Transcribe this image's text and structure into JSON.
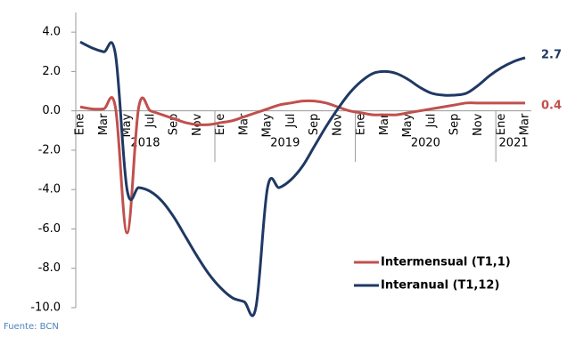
{
  "chart_data": {
    "type": "line",
    "categories": [
      "Ene",
      null,
      "Mar",
      null,
      "May",
      null,
      "Jul",
      null,
      "Sep",
      null,
      "Nov",
      null,
      "Ene",
      null,
      "Mar",
      null,
      "May",
      null,
      "Jul",
      null,
      "Sep",
      null,
      "Nov",
      null,
      "Ene",
      null,
      "Mar",
      null,
      "May",
      null,
      "Jul",
      null,
      "Sep",
      null,
      "Nov",
      null,
      "Ene",
      null,
      "Mar"
    ],
    "years": [
      "2018",
      "2019",
      "2020",
      "2021"
    ],
    "ylim": [
      -10,
      5
    ],
    "yticks": [
      {
        "value": 4,
        "label": "4.0"
      },
      {
        "value": 2,
        "label": "2.0"
      },
      {
        "value": 0,
        "label": "0.0"
      },
      {
        "value": -2,
        "label": "-2.0"
      },
      {
        "value": -4,
        "label": "-4.0"
      },
      {
        "value": -6,
        "label": "-6.0"
      },
      {
        "value": -8,
        "label": "-8.0"
      },
      {
        "value": -10,
        "label": "-10.0"
      }
    ],
    "legend": "lower right",
    "series": [
      {
        "name": "Intermensual (T1,1)",
        "color": "#c0504d",
        "values": [
          0.2,
          0.1,
          0.1,
          0.2,
          -6.2,
          0.2,
          0.0,
          -0.2,
          -0.4,
          -0.6,
          -0.7,
          -0.7,
          -0.6,
          -0.5,
          -0.3,
          -0.1,
          0.1,
          0.3,
          0.4,
          0.5,
          0.5,
          0.4,
          0.2,
          0.0,
          -0.1,
          -0.2,
          -0.2,
          -0.2,
          -0.1,
          0.0,
          0.1,
          0.2,
          0.3,
          0.4,
          0.4,
          0.4,
          0.4,
          0.4,
          0.4
        ]
      },
      {
        "name": "Interanual (T1,12)",
        "color": "#1f3864",
        "values": [
          3.5,
          3.2,
          3.0,
          2.9,
          -4.0,
          -3.9,
          -4.1,
          -4.6,
          -5.4,
          -6.4,
          -7.4,
          -8.3,
          -9.0,
          -9.5,
          -9.7,
          -10.0,
          -3.9,
          -3.9,
          -3.5,
          -2.8,
          -1.8,
          -0.8,
          0.1,
          0.9,
          1.5,
          1.9,
          2.0,
          1.9,
          1.6,
          1.2,
          0.9,
          0.8,
          0.8,
          0.9,
          1.3,
          1.8,
          2.2,
          2.5,
          2.7
        ]
      }
    ],
    "source": "Fuente: BCN"
  }
}
